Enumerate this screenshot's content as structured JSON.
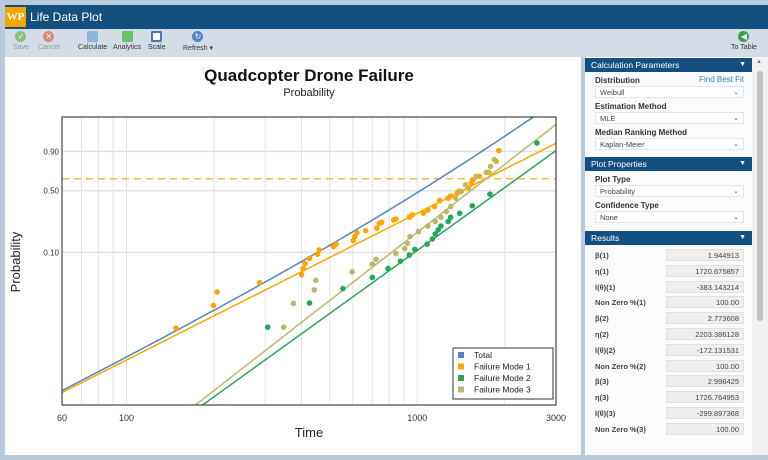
{
  "app": {
    "logo": "WP",
    "title": "Life Data Plot"
  },
  "toolbar": {
    "save": "Save",
    "cancel": "Cancel",
    "calculate": "Calculate",
    "analytics": "Analytics",
    "scale": "Scale",
    "refresh": "Refresh",
    "to_table": "To Table"
  },
  "chart_data": {
    "type": "scatter",
    "title": "Quadcopter Drone Failure",
    "subtitle": "Probability",
    "xlabel": "Time",
    "ylabel": "Probability",
    "xscale": "log",
    "yscale": "weibull",
    "xlim": [
      60,
      3000
    ],
    "ylim": [
      0.001,
      0.9986
    ],
    "xticks": [
      "60",
      "100",
      "1000",
      "3000"
    ],
    "yticks": [
      "0.90",
      "0.50",
      "0.10"
    ],
    "reference_line": {
      "y": 0.632,
      "style": "dashed",
      "color": "#ffb733"
    },
    "legend_position": "bottom-right",
    "grid": true,
    "series": [
      {
        "name": "Total",
        "color": "#4e86c2",
        "type": "fit",
        "components": [
          1,
          2,
          3
        ]
      },
      {
        "name": "Failure Mode 1",
        "color": "#ffa500",
        "beta": 1.944913,
        "eta": 1720.675857,
        "points": [
          [
            148,
            0.0104
          ],
          [
            199,
            0.0207
          ],
          [
            205,
            0.031
          ],
          [
            287,
            0.041
          ],
          [
            400,
            0.052
          ],
          [
            405,
            0.062
          ],
          [
            411,
            0.072
          ],
          [
            426,
            0.084
          ],
          [
            454,
            0.095
          ],
          [
            460,
            0.107
          ],
          [
            515,
            0.118
          ],
          [
            526,
            0.127
          ],
          [
            602,
            0.14
          ],
          [
            610,
            0.157
          ],
          [
            620,
            0.175
          ],
          [
            665,
            0.185
          ],
          [
            726,
            0.198
          ],
          [
            740,
            0.226
          ],
          [
            754,
            0.232
          ],
          [
            830,
            0.247
          ],
          [
            845,
            0.253
          ],
          [
            939,
            0.265
          ],
          [
            961,
            0.282
          ],
          [
            1050,
            0.294
          ],
          [
            1087,
            0.32
          ],
          [
            1146,
            0.348
          ],
          [
            1194,
            0.402
          ],
          [
            1277,
            0.424
          ],
          [
            1303,
            0.445
          ],
          [
            1374,
            0.475
          ],
          [
            1390,
            0.495
          ],
          [
            1500,
            0.528
          ],
          [
            1535,
            0.583
          ],
          [
            1553,
            0.62
          ],
          [
            1637,
            0.658
          ],
          [
            1762,
            0.703
          ],
          [
            1867,
            0.817
          ],
          [
            1907,
            0.905
          ]
        ]
      },
      {
        "name": "Failure Mode 2",
        "color": "#27a55a",
        "beta": 2.773608,
        "eta": 2203.386128,
        "points": [
          [
            306,
            0.0107
          ],
          [
            426,
            0.0222
          ],
          [
            555,
            0.0343
          ],
          [
            701,
            0.048
          ],
          [
            793,
            0.0625
          ],
          [
            875,
            0.0776
          ],
          [
            939,
            0.0925
          ],
          [
            981,
            0.109
          ],
          [
            1081,
            0.127
          ],
          [
            1127,
            0.147
          ],
          [
            1153,
            0.169
          ],
          [
            1180,
            0.189
          ],
          [
            1205,
            0.21
          ],
          [
            1277,
            0.237
          ],
          [
            1303,
            0.265
          ],
          [
            1399,
            0.294
          ],
          [
            1546,
            0.354
          ],
          [
            1778,
            0.464
          ],
          [
            2579,
            0.949
          ]
        ]
      },
      {
        "name": "Failure Mode 3",
        "color": "#bdb76b",
        "beta": 2.998425,
        "eta": 1726.764953,
        "points": [
          [
            347,
            0.0107
          ],
          [
            375,
            0.022
          ],
          [
            442,
            0.033
          ],
          [
            448,
            0.044
          ],
          [
            597,
            0.0566
          ],
          [
            701,
            0.071
          ],
          [
            721,
            0.082
          ],
          [
            844,
            0.097
          ],
          [
            906,
            0.112
          ],
          [
            925,
            0.13
          ],
          [
            944,
            0.157
          ],
          [
            1009,
            0.18
          ],
          [
            1087,
            0.21
          ],
          [
            1153,
            0.237
          ],
          [
            1205,
            0.265
          ],
          [
            1259,
            0.307
          ],
          [
            1303,
            0.348
          ],
          [
            1355,
            0.424
          ],
          [
            1416,
            0.492
          ],
          [
            1466,
            0.564
          ],
          [
            1592,
            0.658
          ],
          [
            1727,
            0.703
          ],
          [
            1786,
            0.767
          ],
          [
            1841,
            0.833
          ]
        ]
      }
    ]
  },
  "calc": {
    "header": "Calculation Parameters",
    "distribution_label": "Distribution",
    "find_best_fit": "Find Best Fit",
    "distribution": "Weibull",
    "estimation_label": "Estimation Method",
    "estimation": "MLE",
    "ranking_label": "Median Ranking Method",
    "ranking": "Kaplan-Meier"
  },
  "plotprops": {
    "header": "Plot Properties",
    "type_label": "Plot Type",
    "type": "Probability",
    "conf_label": "Confidence Type",
    "conf": "None"
  },
  "results": {
    "header": "Results",
    "rows": [
      {
        "label": "β(1)",
        "value": "1.944913"
      },
      {
        "label": "η(1)",
        "value": "1720.675857"
      },
      {
        "label": "l(θ)(1)",
        "value": "-383.143214"
      },
      {
        "label": "Non Zero %(1)",
        "value": "100.00"
      },
      {
        "label": "β(2)",
        "value": "2.773608"
      },
      {
        "label": "η(2)",
        "value": "2203.386128"
      },
      {
        "label": "l(θ)(2)",
        "value": "-172.131531"
      },
      {
        "label": "Non Zero %(2)",
        "value": "100.00"
      },
      {
        "label": "β(3)",
        "value": "2.998425"
      },
      {
        "label": "η(3)",
        "value": "1726.764953"
      },
      {
        "label": "l(θ)(3)",
        "value": "-299.897368"
      },
      {
        "label": "Non Zero %(3)",
        "value": "100.00"
      }
    ]
  }
}
